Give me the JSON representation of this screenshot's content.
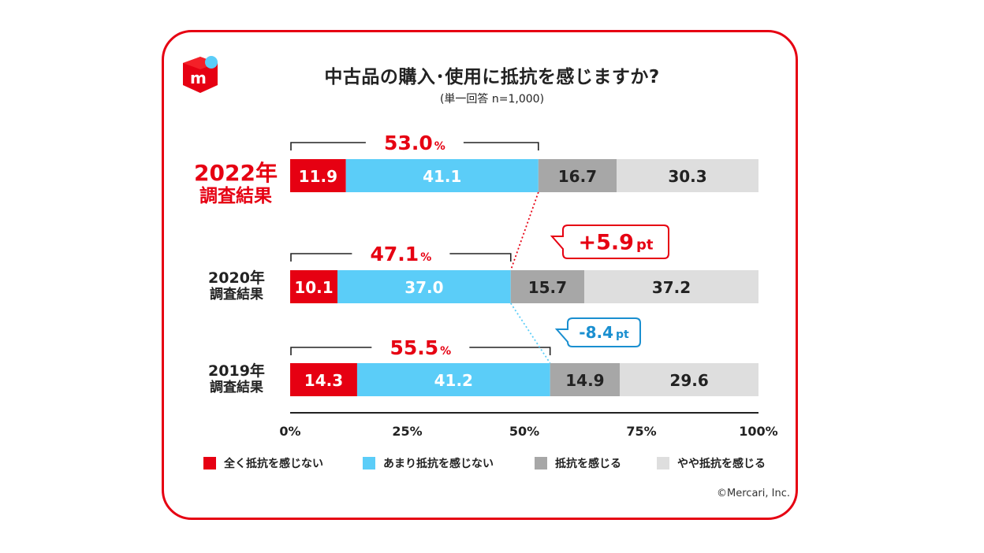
{
  "title": "中古品の購入･使用に抵抗を感じますか?",
  "subtitle": "(単一回答 n=1,000)",
  "copyright": "©Mercari, Inc.",
  "colors": {
    "frame": "#e60012",
    "series": [
      "#e60012",
      "#5bcdf8",
      "#a7a7a7",
      "#dedede"
    ],
    "series_text": [
      "#ffffff",
      "#ffffff",
      "#222222",
      "#222222"
    ],
    "up_callout": "#e60012",
    "down_callout": "#1a8fd0"
  },
  "logo": {
    "letter": "m",
    "icon": "mercari-logo-icon"
  },
  "rows": [
    {
      "year": "2022年",
      "sub": "調査結果",
      "bracket_value": "53.0",
      "bracket_unit": "%"
    },
    {
      "year": "2020年",
      "sub": "調査結果",
      "bracket_value": "47.1",
      "bracket_unit": "%"
    },
    {
      "year": "2019年",
      "sub": "調査結果",
      "bracket_value": "55.5",
      "bracket_unit": "%"
    }
  ],
  "callouts": [
    {
      "value": "+5.9",
      "unit": "pt",
      "direction": "up"
    },
    {
      "value": "-8.4",
      "unit": "pt",
      "direction": "down"
    }
  ],
  "chart_data": {
    "type": "bar",
    "orientation": "horizontal",
    "stacked": true,
    "title": "中古品の購入･使用に抵抗を感じますか?",
    "categories": [
      "2022年調査結果",
      "2020年調査結果",
      "2019年調査結果"
    ],
    "series": [
      {
        "name": "全く抵抗を感じない",
        "values": [
          11.9,
          10.1,
          14.3
        ]
      },
      {
        "name": "あまり抵抗を感じない",
        "values": [
          41.1,
          37.0,
          41.2
        ]
      },
      {
        "name": "抵抗を感じる",
        "values": [
          16.7,
          15.7,
          14.9
        ]
      },
      {
        "name": "やや抵抗を感じる",
        "values": [
          30.3,
          37.2,
          29.6
        ]
      }
    ],
    "value_labels": [
      [
        "11.9",
        "41.1",
        "16.7",
        "30.3"
      ],
      [
        "10.1",
        "37.0",
        "15.7",
        "37.2"
      ],
      [
        "14.3",
        "41.2",
        "14.9",
        "29.6"
      ]
    ],
    "xlim": [
      0,
      100
    ],
    "xticks": [
      "0%",
      "25%",
      "50%",
      "75%",
      "100%"
    ],
    "legend_position": "bottom"
  }
}
